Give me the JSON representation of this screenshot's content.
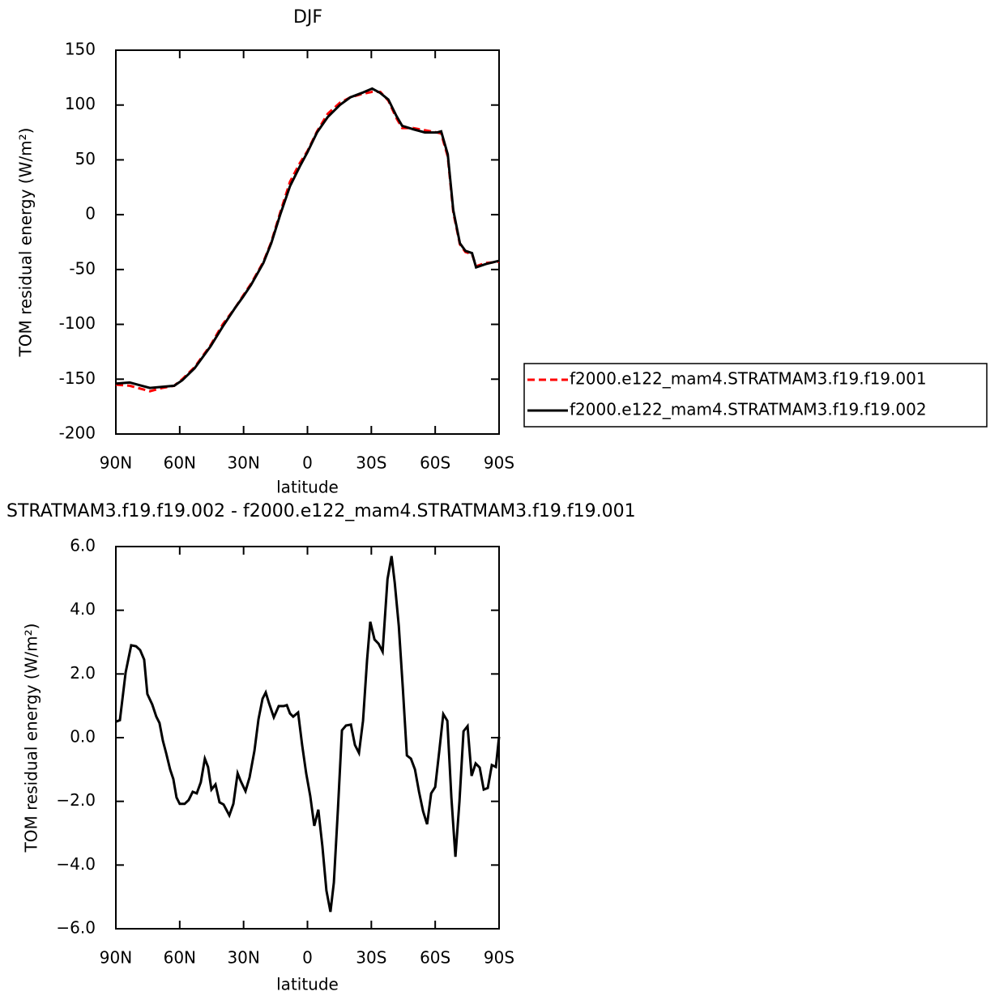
{
  "chart_data": [
    {
      "type": "line",
      "title": "DJF",
      "xlabel": "latitude",
      "ylabel": "TOM residual energy (W/m²)",
      "x": [
        90,
        83.5,
        77.8,
        74,
        68.3,
        62.6,
        58.8,
        53,
        45.5,
        39.8,
        34,
        30.3,
        26.5,
        20.7,
        17,
        12.8,
        8.2,
        3.6,
        0,
        -4.5,
        -9.5,
        -15.2,
        -20.1,
        -25.5,
        -30.4,
        -34.2,
        -38,
        -41.8,
        -44.5,
        -49.5,
        -55.2,
        -60.9,
        -62.8,
        -65.9,
        -68.5,
        -71.6,
        -74.2,
        -77.3,
        -79.2,
        -83.8,
        -90
      ],
      "series": [
        {
          "name": "f2000.e122_mam4.STRATMAM3.f19.f19.001",
          "color": "#ff0000",
          "linestyle": "dashed",
          "values": [
            -155,
            -156,
            -159,
            -161,
            -158,
            -156,
            -150,
            -139,
            -119,
            -100,
            -85,
            -74,
            -63,
            -43,
            -25,
            2,
            30,
            47,
            58,
            76,
            92,
            102,
            107,
            110,
            112,
            112,
            104,
            88,
            79,
            79,
            77,
            75,
            74,
            53,
            2,
            -27,
            -34,
            -36,
            -47,
            -44,
            -43
          ]
        },
        {
          "name": "f2000.e122_mam4.STRATMAM3.f19.f19.002",
          "color": "#000000",
          "linestyle": "solid",
          "values": [
            -154,
            -153,
            -156,
            -158,
            -157,
            -156,
            -151,
            -140,
            -120,
            -102,
            -85,
            -75,
            -64,
            -44,
            -26,
            0,
            26,
            44,
            57,
            75,
            89,
            100,
            107,
            111,
            115,
            111,
            105,
            90,
            81,
            78,
            75,
            75,
            76,
            55,
            4,
            -26,
            -33,
            -35,
            -48,
            -45,
            -42
          ]
        }
      ],
      "xlim": [
        90,
        -90
      ],
      "xticks": [
        {
          "value": 90,
          "label": "90N"
        },
        {
          "value": 60,
          "label": "60N"
        },
        {
          "value": 30,
          "label": "30N"
        },
        0,
        {
          "value": -30,
          "label": "30S"
        },
        {
          "value": -60,
          "label": "60S"
        },
        {
          "value": -90,
          "label": "90S"
        }
      ],
      "ylim": [
        -200,
        150
      ],
      "yticks": [
        -200,
        -150,
        -100,
        -50,
        0,
        50,
        100,
        150
      ],
      "legend": "right"
    },
    {
      "type": "line",
      "title": "STRATMAM3.f19.f19.002 - f2000.e122_mam4.STRATMAM3.f19.f19.001",
      "xlabel": "latitude",
      "ylabel": "TOM residual energy (W/m²)",
      "x": [
        90,
        88.1,
        85.4,
        82.8,
        80.5,
        78.6,
        76.7,
        75.2,
        72.9,
        71,
        69.5,
        67.9,
        66.4,
        64.5,
        63,
        61.5,
        60,
        57.7,
        55.8,
        53.9,
        52,
        50.1,
        48.2,
        46.7,
        45.1,
        43.2,
        41.3,
        39.4,
        36.7,
        34.8,
        32.8,
        31.3,
        29.1,
        27.2,
        24.9,
        23,
        21.1,
        19.6,
        18.1,
        15.8,
        13.5,
        11.2,
        9.7,
        8.2,
        6.7,
        4.4,
        2.5,
        0.6,
        -1.3,
        -3.2,
        -5.1,
        -7,
        -8.9,
        -10.8,
        -12.4,
        -14.3,
        -16.2,
        -18.1,
        -20.4,
        -22.3,
        -24.2,
        -26.1,
        -28,
        -29.5,
        -31.5,
        -33.4,
        -35.3,
        -37.6,
        -39.5,
        -41,
        -42.9,
        -44.8,
        -46.7,
        -48.6,
        -50.5,
        -52.4,
        -54.3,
        -56.2,
        -58.1,
        -60,
        -61.9,
        -63.8,
        -65.7,
        -67.6,
        -69.5,
        -71.4,
        -73.3,
        -75.2,
        -77.1,
        -79,
        -80.9,
        -82.8,
        -84.7,
        -86.6,
        -88.5,
        -90
      ],
      "values": [
        0.5,
        0.55,
        2.05,
        2.9,
        2.87,
        2.75,
        2.45,
        1.37,
        1.04,
        0.66,
        0.46,
        -0.1,
        -0.48,
        -1,
        -1.3,
        -1.88,
        -2.08,
        -2.08,
        -1.96,
        -1.7,
        -1.75,
        -1.4,
        -0.66,
        -0.92,
        -1.63,
        -1.47,
        -2.03,
        -2.1,
        -2.44,
        -2.08,
        -1.12,
        -1.37,
        -1.68,
        -1.25,
        -0.41,
        0.58,
        1.22,
        1.42,
        1.09,
        0.64,
        0.99,
        0.99,
        1.02,
        0.76,
        0.66,
        0.79,
        -0.23,
        -1.12,
        -1.83,
        -2.77,
        -2.26,
        -3.4,
        -4.8,
        -5.47,
        -4.55,
        -2.26,
        0.23,
        0.38,
        0.41,
        -0.23,
        -0.48,
        0.53,
        2.44,
        3.64,
        3.08,
        2.95,
        2.7,
        4.98,
        5.7,
        4.86,
        3.51,
        1.55,
        -0.56,
        -0.66,
        -1,
        -1.7,
        -2.31,
        -2.72,
        -1.75,
        -1.55,
        -0.43,
        0.74,
        0.53,
        -1.88,
        -3.74,
        -2,
        0.2,
        0.36,
        -1.2,
        -0.81,
        -0.94,
        -1.63,
        -1.58,
        -0.86,
        -0.92,
        0.03
      ],
      "color": "#000000",
      "xlim": [
        90,
        -90
      ],
      "xticks": [
        {
          "value": 90,
          "label": "90N"
        },
        {
          "value": 60,
          "label": "60N"
        },
        {
          "value": 30,
          "label": "30N"
        },
        0,
        {
          "value": -30,
          "label": "30S"
        },
        {
          "value": -60,
          "label": "60S"
        },
        {
          "value": -90,
          "label": "90S"
        }
      ],
      "ylim": [
        -6,
        6
      ],
      "yticks": [
        {
          "value": -6,
          "label": "−6.0"
        },
        {
          "value": -4,
          "label": "−4.0"
        },
        {
          "value": -2,
          "label": "−2.0"
        },
        {
          "value": 0,
          "label": "0.0"
        },
        {
          "value": 2,
          "label": "2.0"
        },
        {
          "value": 4,
          "label": "4.0"
        },
        {
          "value": 6,
          "label": "6.0"
        }
      ]
    }
  ]
}
